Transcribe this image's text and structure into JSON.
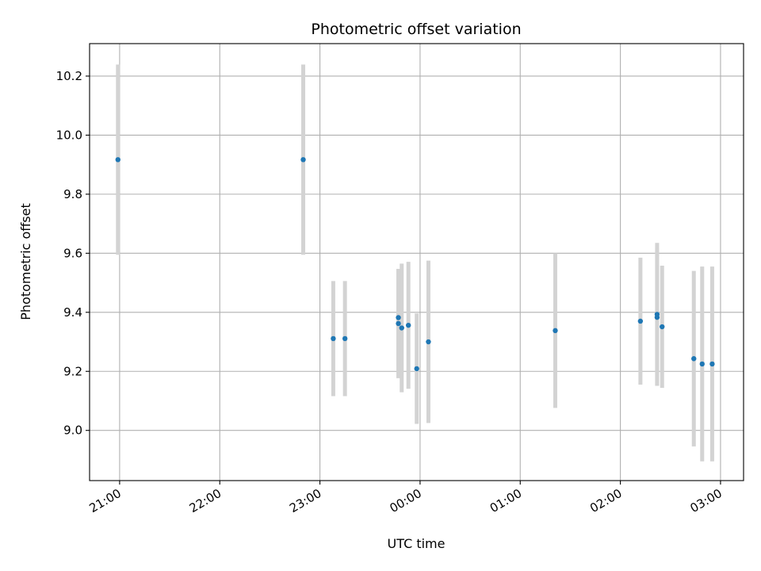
{
  "chart_data": {
    "type": "scatter",
    "title": "Photometric offset variation",
    "xlabel": "UTC time",
    "ylabel": "Photometric offset",
    "x_tick_labels": [
      "21:00",
      "22:00",
      "23:00",
      "00:00",
      "01:00",
      "02:00",
      "03:00"
    ],
    "x_tick_hours": [
      21,
      22,
      23,
      24,
      25,
      26,
      27
    ],
    "y_tick_labels": [
      "9.0",
      "9.2",
      "9.4",
      "9.6",
      "9.8",
      "10.0",
      "10.2"
    ],
    "y_tick_values": [
      9.0,
      9.2,
      9.4,
      9.6,
      9.8,
      10.0,
      10.2
    ],
    "xlim_hours": [
      20.7,
      27.23
    ],
    "ylim": [
      8.83,
      10.31
    ],
    "grid": true,
    "marker_color": "#1f77b4",
    "errorbar_color": "#d3d3d3",
    "points": [
      {
        "t": "20:59",
        "y": 9.917,
        "err": 0.322
      },
      {
        "t": "22:50",
        "y": 9.917,
        "err": 0.322
      },
      {
        "t": "23:08",
        "y": 9.311,
        "err": 0.195
      },
      {
        "t": "23:15",
        "y": 9.311,
        "err": 0.195
      },
      {
        "t": "23:47",
        "y": 9.382,
        "err": 0.165
      },
      {
        "t": "23:47",
        "y": 9.362,
        "err": 0.185
      },
      {
        "t": "23:49",
        "y": 9.347,
        "err": 0.218
      },
      {
        "t": "23:53",
        "y": 9.356,
        "err": 0.215
      },
      {
        "t": "23:58",
        "y": 9.209,
        "err": 0.187
      },
      {
        "t": "00:05",
        "y": 9.3,
        "err": 0.275
      },
      {
        "t": "01:21",
        "y": 9.338,
        "err": 0.262
      },
      {
        "t": "02:12",
        "y": 9.37,
        "err": 0.215
      },
      {
        "t": "02:22",
        "y": 9.383,
        "err": 0.232
      },
      {
        "t": "02:22",
        "y": 9.393,
        "err": 0.242
      },
      {
        "t": "02:25",
        "y": 9.351,
        "err": 0.207
      },
      {
        "t": "02:44",
        "y": 9.243,
        "err": 0.297
      },
      {
        "t": "02:49",
        "y": 9.225,
        "err": 0.33
      },
      {
        "t": "02:55",
        "y": 9.225,
        "err": 0.33
      }
    ]
  }
}
